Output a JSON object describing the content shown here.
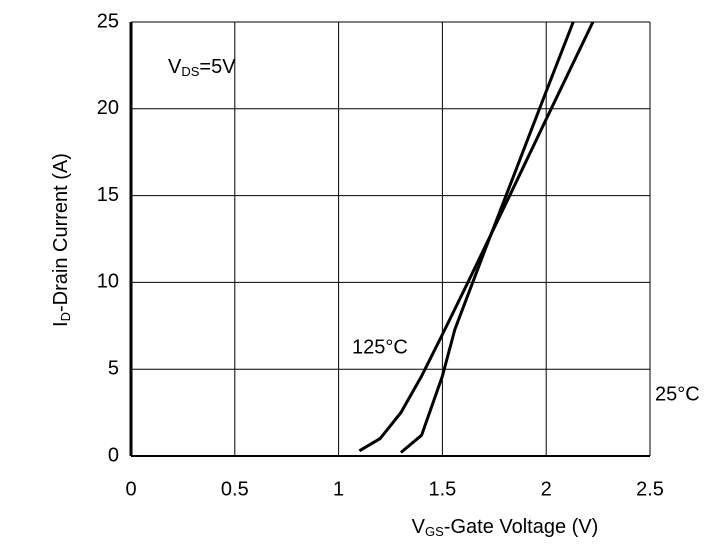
{
  "chart_data": {
    "type": "line",
    "x_label": [
      "V",
      "GS",
      "-Gate Voltage (V)"
    ],
    "y_label": [
      "I",
      "D",
      "-Drain Current (A)"
    ],
    "annotation": [
      "V",
      "DS",
      "=5V"
    ],
    "xlim": [
      0,
      2.5
    ],
    "xticks": [
      0,
      0.5,
      1,
      1.5,
      2,
      2.5
    ],
    "ylim": [
      0,
      25
    ],
    "yticks": [
      0,
      5,
      10,
      15,
      20,
      25
    ],
    "grid": true,
    "series": [
      {
        "name": "25°C",
        "color": "#000000",
        "x": [
          1.3,
          1.4,
          1.5,
          1.56,
          1.7,
          1.8,
          1.9,
          2.0,
          2.13
        ],
        "values": [
          0.2,
          1.2,
          4.6,
          7.3,
          11.7,
          14.8,
          17.9,
          21.0,
          25.0
        ]
      },
      {
        "name": "125°C",
        "color": "#000000",
        "x": [
          1.1,
          1.2,
          1.3,
          1.4,
          1.5,
          1.623,
          1.8,
          2.0,
          2.225
        ],
        "values": [
          0.3,
          1.0,
          2.5,
          4.6,
          7.0,
          10.0,
          14.4,
          19.4,
          25.0
        ]
      }
    ]
  }
}
